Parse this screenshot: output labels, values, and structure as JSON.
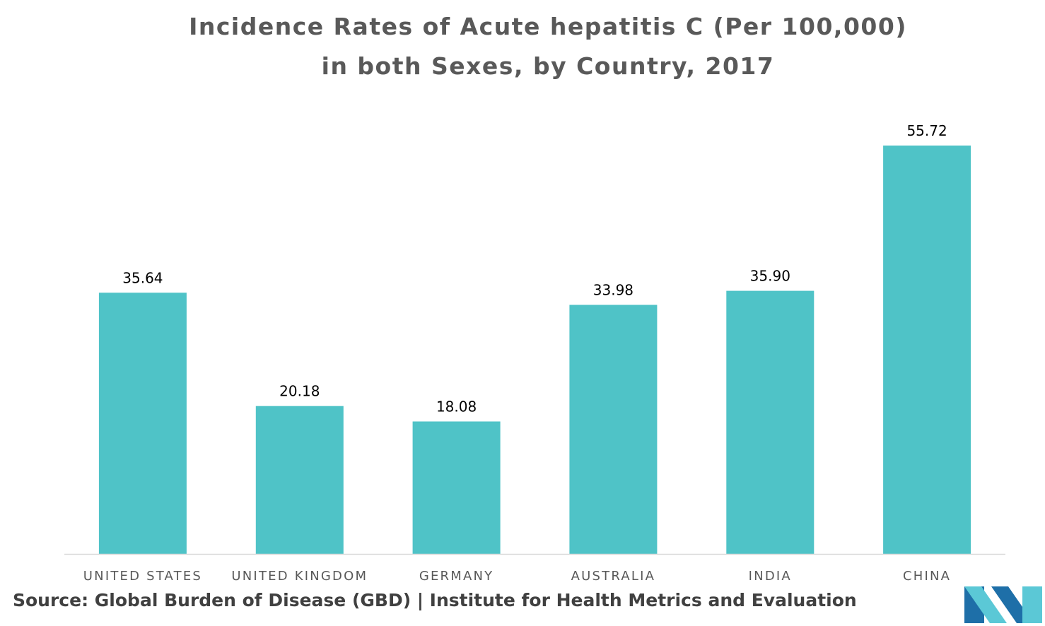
{
  "colors": {
    "bar": "#4fc3c7",
    "title": "#595959",
    "axis_line": "#d9d9d9",
    "tick_label": "#595959",
    "value_label": "#000000",
    "source": "#404040",
    "logo_dark": "#1e6fa8",
    "logo_light": "#5bc8d6"
  },
  "chart_data": {
    "type": "bar",
    "title_lines": [
      "Incidence Rates of Acute hepatitis C (Per 100,000)",
      "in both Sexes, by Country, 2017"
    ],
    "categories": [
      "UNITED STATES",
      "UNITED KINGDOM",
      "GERMANY",
      "AUSTRALIA",
      "INDIA",
      "CHINA"
    ],
    "values": [
      35.64,
      20.18,
      18.08,
      33.98,
      35.9,
      55.72
    ],
    "value_labels": [
      "35.64",
      "20.18",
      "18.08",
      "33.98",
      "35.90",
      "55.72"
    ],
    "xlabel": "",
    "ylabel": "",
    "ylim": [
      0,
      60
    ],
    "grid": false,
    "legend": "none"
  },
  "footer": {
    "source": "Source: Global Burden of Disease (GBD) | Institute for Health Metrics and Evaluation"
  },
  "logo": {
    "icon": "mordor-intelligence-logo"
  }
}
